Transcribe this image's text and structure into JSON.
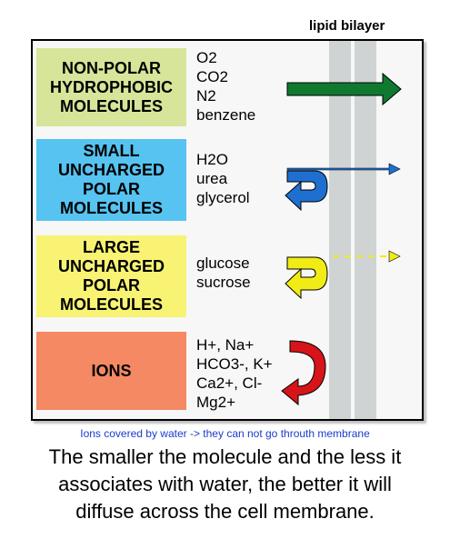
{
  "title": "lipid bilayer",
  "colors": {
    "green_box": "#d6e59a",
    "blue_box": "#56c3f1",
    "yellow_box": "#f8f373",
    "orange_box": "#f48963",
    "green_arrow": "#0f7a2f",
    "blue_arrow": "#1f6fd1",
    "yellow_arrow": "#f1ec16",
    "red_arrow": "#d61419"
  },
  "rows": [
    {
      "category": "NON-POLAR\nHYDROPHOBIC\nMOLECULES",
      "molecules": "O2\nCO2\nN2\nbenzene",
      "arrow": "crosses membrane freely"
    },
    {
      "category": "SMALL\nUNCHARGED\nPOLAR\nMOLECULES",
      "molecules": "H2O\nurea\nglycerol",
      "arrow": "partly crosses, partly turned back"
    },
    {
      "category": "LARGE\nUNCHARGED\nPOLAR\nMOLECULES",
      "molecules": "glucose\nsucrose",
      "arrow": "mostly turned back, trace crosses"
    },
    {
      "category": "IONS",
      "molecules": "H+, Na+\nHCO3-, K+\nCa2+, Cl-\nMg2+",
      "arrow": "turned back"
    }
  ],
  "note": "Ions covered by water -> they can not go throuth membrane",
  "caption": "The smaller the molecule and the less it associates with water, the better it will diffuse across the cell membrane."
}
